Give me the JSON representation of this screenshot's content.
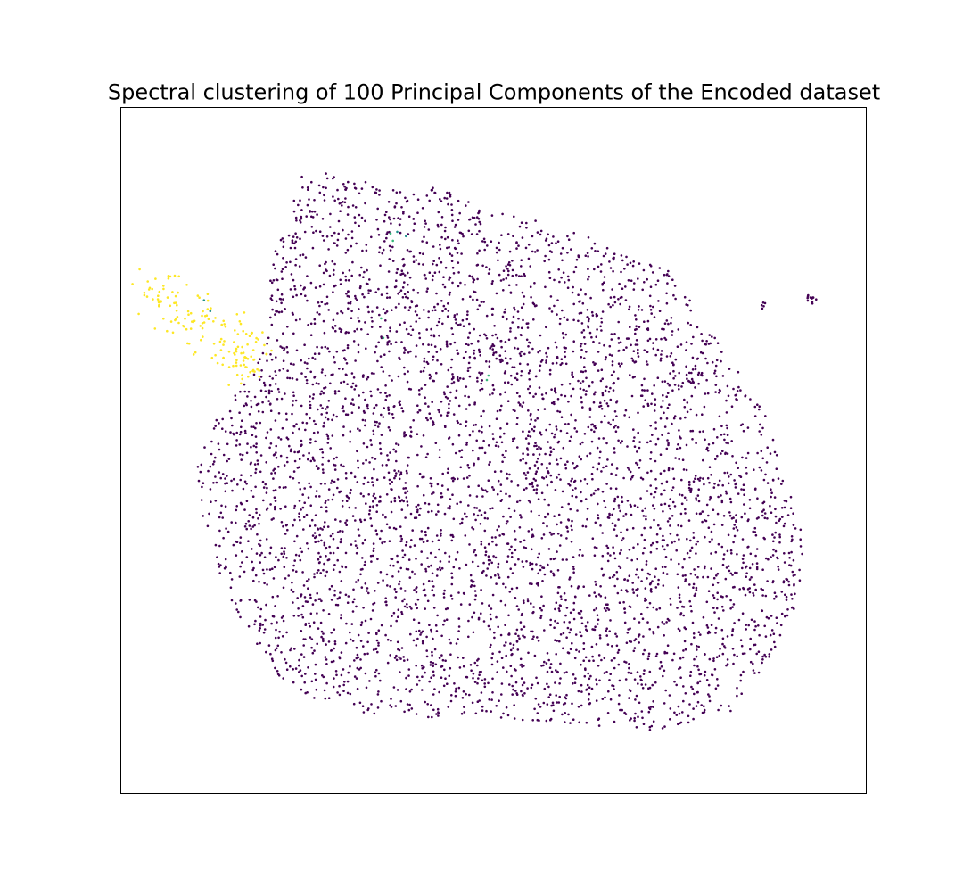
{
  "chart_data": {
    "type": "scatter",
    "title": "Spectral clustering of 100 Principal Components of the Encoded dataset",
    "xlabel": "",
    "ylabel": "",
    "axes_ticks": "none",
    "grid": false,
    "legend": "none",
    "xlim": [
      0,
      100
    ],
    "ylim": [
      0,
      100
    ],
    "cluster_colors": [
      "#440154",
      "#fde725",
      "#35b779",
      "#21918c"
    ],
    "point_count_shown_approx": 5000,
    "main_cluster_region": {
      "cluster_index": 0,
      "outline": [
        [
          24,
          90
        ],
        [
          28,
          91
        ],
        [
          36,
          88
        ],
        [
          42,
          89
        ],
        [
          48,
          86
        ],
        [
          54,
          84
        ],
        [
          62,
          82
        ],
        [
          66,
          79
        ],
        [
          74,
          76
        ],
        [
          80,
          66
        ],
        [
          86,
          57
        ],
        [
          92,
          36
        ],
        [
          90,
          24
        ],
        [
          82,
          12
        ],
        [
          72,
          9
        ],
        [
          62,
          10
        ],
        [
          50,
          11
        ],
        [
          40,
          11
        ],
        [
          28,
          12
        ],
        [
          20,
          18
        ],
        [
          14,
          29
        ],
        [
          11,
          40
        ],
        [
          10,
          48
        ],
        [
          13,
          55
        ],
        [
          18,
          62
        ],
        [
          20,
          67
        ],
        [
          20,
          76
        ],
        [
          22,
          85
        ]
      ],
      "points_approx": 4800
    },
    "secondary_clusters": [
      {
        "cluster_index": 1,
        "points_approx": 160,
        "centers": [
          [
            6,
            72.8
          ],
          [
            10,
            69
          ],
          [
            15,
            65.7
          ],
          [
            17,
            62.5
          ]
        ],
        "spread": 1.8
      },
      {
        "cluster_index": 2,
        "points_approx": 6,
        "centers": [
          [
            49,
            59.3
          ],
          [
            35,
            81.2
          ],
          [
            36,
            68
          ]
        ],
        "spread": 1.2
      },
      {
        "cluster_index": 3,
        "points_approx": 3,
        "centers": [
          [
            11,
            71.2
          ],
          [
            38,
            82
          ]
        ],
        "spread": 0.8
      }
    ],
    "outlier_groups": [
      {
        "cluster_index": 0,
        "center": [
          92.5,
          72.3
        ],
        "points_approx": 12
      },
      {
        "cluster_index": 0,
        "center": [
          86,
          71.2
        ],
        "points_approx": 5
      }
    ]
  }
}
